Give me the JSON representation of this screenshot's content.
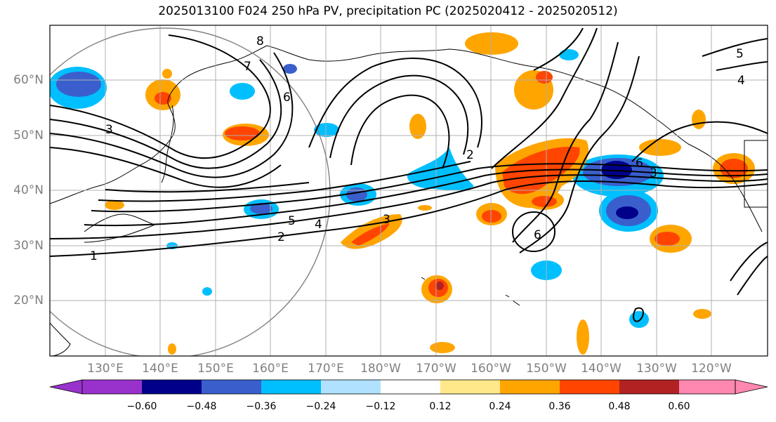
{
  "title": "2025013100 F024 250 hPa PV, precipitation PC (2025020412 - 2025020512)",
  "lat_labels": [
    "60°N",
    "50°N",
    "40°N",
    "30°N",
    "20°N"
  ],
  "lon_labels": [
    "130°E",
    "140°E",
    "150°E",
    "160°E",
    "170°E",
    "180°W",
    "170°W",
    "160°W",
    "150°W",
    "140°W",
    "130°W",
    "120°W"
  ],
  "colorbar": {
    "ticks": [
      "−0.60",
      "−0.48",
      "−0.36",
      "−0.24",
      "−0.12",
      "0.12",
      "0.24",
      "0.36",
      "0.48",
      "0.60"
    ],
    "colors": [
      "#9932cc",
      "#00008b",
      "#3a5fcd",
      "#00bfff",
      "#b0e2ff",
      "#ffffff",
      "#fee88a",
      "#ffa500",
      "#ff4500",
      "#b22222",
      "#ff88b0"
    ]
  },
  "contour_labels": [
    "1",
    "2",
    "3",
    "4",
    "5",
    "6",
    "7",
    "8"
  ],
  "colors": {
    "neg_dark": "#00008b",
    "neg_mid": "#3a5fcd",
    "neg_light": "#00bfff",
    "neg_pale": "#b0e2ff",
    "pos_pale": "#fee88a",
    "pos_light": "#ffa500",
    "pos_mid": "#ff4500",
    "pos_dark": "#b22222"
  }
}
